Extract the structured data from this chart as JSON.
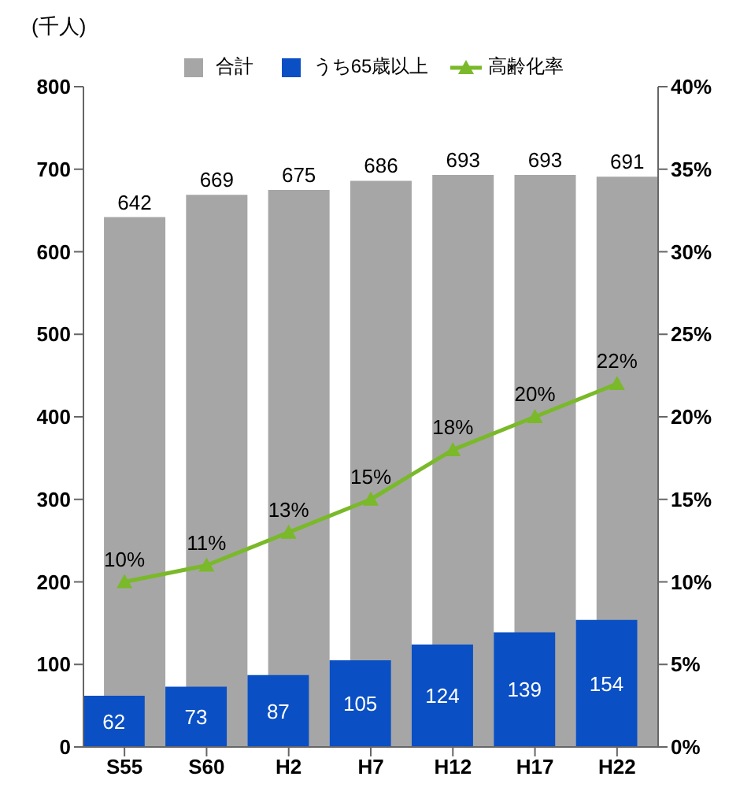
{
  "chart_data": {
    "type": "bar",
    "ylabel": "(千人)",
    "categories": [
      "S55",
      "S60",
      "H2",
      "H7",
      "H12",
      "H17",
      "H22"
    ],
    "series": [
      {
        "name": "合計",
        "color": "#a6a6a6",
        "values": [
          642,
          669,
          675,
          686,
          693,
          693,
          691
        ]
      },
      {
        "name": "うち65歳以上",
        "color": "#0a4fc4",
        "values": [
          62,
          73,
          87,
          105,
          124,
          139,
          154
        ]
      },
      {
        "name": "高齢化率",
        "type": "line",
        "axis": "y2",
        "color": "#7ab929",
        "values": [
          10,
          11,
          13,
          15,
          18,
          20,
          22
        ],
        "value_labels": [
          "10%",
          "11%",
          "13%",
          "15%",
          "18%",
          "20%",
          "22%"
        ]
      }
    ],
    "ylim": [
      0,
      800
    ],
    "yticks": [
      0,
      100,
      200,
      300,
      400,
      500,
      600,
      700,
      800
    ],
    "y2lim": [
      0,
      40
    ],
    "y2ticks": [
      {
        "value": 0,
        "label": "0%"
      },
      {
        "value": 5,
        "label": "5%"
      },
      {
        "value": 10,
        "label": "10%"
      },
      {
        "value": 15,
        "label": "15%"
      },
      {
        "value": 20,
        "label": "20%"
      },
      {
        "value": 25,
        "label": "25%"
      },
      {
        "value": 30,
        "label": "30%"
      },
      {
        "value": 35,
        "label": "35%"
      },
      {
        "value": 40,
        "label": "40%"
      }
    ],
    "data_labels": true,
    "legend": "top",
    "marker": "triangle",
    "grid": false
  }
}
